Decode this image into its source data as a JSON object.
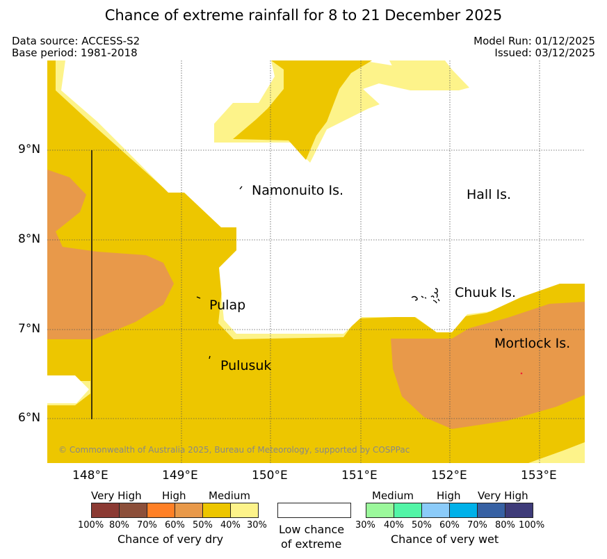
{
  "title": "Chance of extreme rainfall for 8 to 21 December 2025",
  "meta": {
    "data_source": "Data source: ACCESS-S2",
    "base_period": "Base period: 1981-2018",
    "model_run": "Model Run: 01/12/2025",
    "issued": "Issued: 03/12/2025"
  },
  "map": {
    "lat_ticks": [
      "9°N",
      "8°N",
      "7°N",
      "6°N"
    ],
    "lon_ticks": [
      "148°E",
      "149°E",
      "150°E",
      "151°E",
      "152°E",
      "153°E"
    ],
    "places": {
      "namonuito": "Namonuito Is.",
      "hall": "Hall Is.",
      "pulap": "Pulap",
      "chuuk": "Chuuk Is.",
      "mortlock": "Mortlock Is.",
      "pulusuk": "Pulusuk"
    },
    "copyright": "© Commonwealth of Australia 2025, Bureau of Meteorology, supported by COSPPac",
    "colors": {
      "high_dry": "#e8994a",
      "medium_dry": "#edc600",
      "low_dry": "#fdf38a",
      "land": "#000000"
    }
  },
  "legend": {
    "dry": {
      "words": [
        "Very High",
        "High",
        "Medium"
      ],
      "percents": [
        "100%",
        "80%",
        "70%",
        "60%",
        "50%",
        "40%",
        "30%"
      ],
      "colors": [
        "#8b3a33",
        "#8c4f3a",
        "#ff8026",
        "#e8994a",
        "#edc600",
        "#fdf38a"
      ],
      "caption": "Chance of very dry"
    },
    "neutral": {
      "line1": "Low chance",
      "line2": "of extreme",
      "color": "#ffffff"
    },
    "wet": {
      "words": [
        "Medium",
        "High",
        "Very High"
      ],
      "percents": [
        "30%",
        "40%",
        "50%",
        "60%",
        "70%",
        "80%",
        "100%"
      ],
      "colors": [
        "#9bf89b",
        "#52f5a6",
        "#8bcbf9",
        "#00b1e9",
        "#3761a3",
        "#3e3b79"
      ],
      "caption": "Chance of very wet"
    }
  }
}
